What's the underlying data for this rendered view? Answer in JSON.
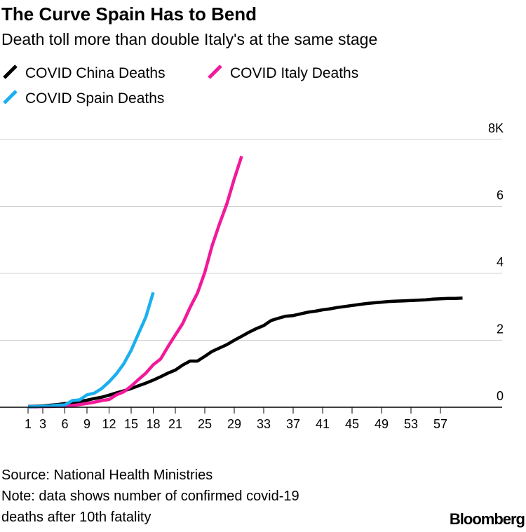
{
  "chart_data": {
    "type": "line",
    "title": "The Curve Spain Has to Bend",
    "subtitle": "Death toll more than double Italy's at the same stage",
    "source": "Source: National Health Ministries",
    "note": [
      "Note: data shows number of confirmed covid-19",
      "deaths after 10th fatality"
    ],
    "brand": "Bloomberg",
    "x": [
      1,
      2,
      3,
      4,
      5,
      6,
      7,
      8,
      9,
      10,
      11,
      12,
      13,
      14,
      15,
      16,
      17,
      18,
      19,
      20,
      21,
      22,
      23,
      24,
      25,
      26,
      27,
      28,
      29,
      30,
      31,
      32,
      33,
      34,
      35,
      36,
      37,
      38,
      39,
      40,
      41,
      42,
      43,
      44,
      45,
      46,
      47,
      48,
      49,
      50,
      51,
      52,
      53,
      54,
      55,
      56,
      57,
      58,
      59,
      60
    ],
    "series": [
      {
        "name": "COVID China Deaths",
        "color": "#000000",
        "values": [
          0.02,
          0.03,
          0.04,
          0.06,
          0.08,
          0.11,
          0.13,
          0.17,
          0.21,
          0.26,
          0.3,
          0.36,
          0.43,
          0.49,
          0.56,
          0.64,
          0.72,
          0.81,
          0.91,
          1.02,
          1.11,
          1.26,
          1.38,
          1.38,
          1.52,
          1.67,
          1.77,
          1.87,
          2.0,
          2.12,
          2.24,
          2.35,
          2.44,
          2.59,
          2.66,
          2.72,
          2.74,
          2.79,
          2.84,
          2.87,
          2.91,
          2.94,
          2.98,
          3.01,
          3.04,
          3.07,
          3.1,
          3.12,
          3.14,
          3.16,
          3.17,
          3.18,
          3.19,
          3.2,
          3.21,
          3.23,
          3.24,
          3.25,
          3.25,
          3.26
        ]
      },
      {
        "name": "COVID Italy Deaths",
        "color": "#f2199a",
        "values": [
          0.01,
          0.01,
          0.02,
          0.02,
          0.03,
          0.03,
          0.05,
          0.08,
          0.11,
          0.15,
          0.2,
          0.23,
          0.37,
          0.46,
          0.63,
          0.83,
          1.02,
          1.27,
          1.44,
          1.81,
          2.16,
          2.5,
          2.98,
          3.41,
          4.03,
          4.83,
          5.48,
          6.08,
          6.82,
          7.5,
          null,
          null,
          null,
          null,
          null,
          null,
          null,
          null,
          null,
          null,
          null,
          null,
          null,
          null,
          null,
          null,
          null,
          null,
          null,
          null,
          null,
          null,
          null,
          null,
          null,
          null,
          null,
          null,
          null,
          null
        ]
      },
      {
        "name": "COVID Spain Deaths",
        "color": "#1ab0f0",
        "values": [
          0.01,
          0.02,
          0.03,
          0.04,
          0.06,
          0.07,
          0.2,
          0.22,
          0.37,
          0.42,
          0.56,
          0.76,
          1.0,
          1.3,
          1.7,
          2.2,
          2.7,
          3.43,
          null,
          null,
          null,
          null,
          null,
          null,
          null,
          null,
          null,
          null,
          null,
          null,
          null,
          null,
          null,
          null,
          null,
          null,
          null,
          null,
          null,
          null,
          null,
          null,
          null,
          null,
          null,
          null,
          null,
          null,
          null,
          null,
          null,
          null,
          null,
          null,
          null,
          null,
          null,
          null,
          null,
          null
        ]
      }
    ],
    "xlim": [
      0,
      65
    ],
    "xticks": [
      1,
      3,
      6,
      9,
      12,
      15,
      18,
      21,
      25,
      29,
      33,
      37,
      41,
      45,
      49,
      53,
      57
    ],
    "ylim": [
      0,
      8
    ],
    "yticks": [
      0,
      2,
      4,
      6,
      {
        "value": 8,
        "label": "8K"
      }
    ],
    "grid": true
  }
}
